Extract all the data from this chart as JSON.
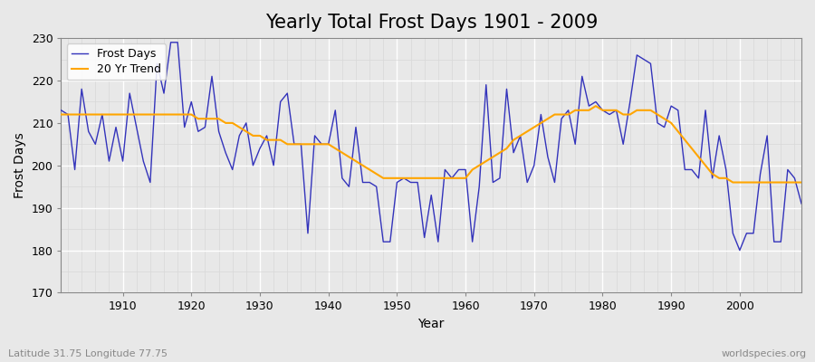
{
  "title": "Yearly Total Frost Days 1901 - 2009",
  "xlabel": "Year",
  "ylabel": "Frost Days",
  "lat_lon_label": "Latitude 31.75 Longitude 77.75",
  "watermark": "worldspecies.org",
  "ylim": [
    170,
    230
  ],
  "xlim": [
    1901,
    2009
  ],
  "years": [
    1901,
    1902,
    1903,
    1904,
    1905,
    1906,
    1907,
    1908,
    1909,
    1910,
    1911,
    1912,
    1913,
    1914,
    1915,
    1916,
    1917,
    1918,
    1919,
    1920,
    1921,
    1922,
    1923,
    1924,
    1925,
    1926,
    1927,
    1928,
    1929,
    1930,
    1931,
    1932,
    1933,
    1934,
    1935,
    1936,
    1937,
    1938,
    1939,
    1940,
    1941,
    1942,
    1943,
    1944,
    1945,
    1946,
    1947,
    1948,
    1949,
    1950,
    1951,
    1952,
    1953,
    1954,
    1955,
    1956,
    1957,
    1958,
    1959,
    1960,
    1961,
    1962,
    1963,
    1964,
    1965,
    1966,
    1967,
    1968,
    1969,
    1970,
    1971,
    1972,
    1973,
    1974,
    1975,
    1976,
    1977,
    1978,
    1979,
    1980,
    1981,
    1982,
    1983,
    1984,
    1985,
    1986,
    1987,
    1988,
    1989,
    1990,
    1991,
    1992,
    1993,
    1994,
    1995,
    1996,
    1997,
    1998,
    1999,
    2000,
    2001,
    2002,
    2003,
    2004,
    2005,
    2006,
    2007,
    2008,
    2009
  ],
  "frost_days": [
    213,
    212,
    199,
    218,
    208,
    205,
    212,
    201,
    209,
    201,
    217,
    209,
    201,
    196,
    224,
    217,
    229,
    229,
    209,
    215,
    208,
    209,
    221,
    208,
    203,
    199,
    207,
    210,
    200,
    204,
    207,
    200,
    215,
    217,
    205,
    205,
    184,
    207,
    205,
    205,
    213,
    197,
    195,
    209,
    196,
    196,
    195,
    182,
    182,
    196,
    197,
    196,
    196,
    183,
    193,
    182,
    199,
    197,
    199,
    199,
    182,
    195,
    219,
    196,
    197,
    218,
    203,
    207,
    196,
    200,
    212,
    202,
    196,
    211,
    213,
    205,
    221,
    214,
    215,
    213,
    212,
    213,
    205,
    215,
    226,
    225,
    224,
    210,
    209,
    214,
    213,
    199,
    199,
    197,
    213,
    197,
    207,
    199,
    184,
    180,
    184,
    184,
    198,
    207,
    182,
    182,
    199,
    197,
    191
  ],
  "trend_years": [
    1901,
    1902,
    1903,
    1904,
    1905,
    1906,
    1907,
    1908,
    1909,
    1910,
    1911,
    1912,
    1913,
    1914,
    1915,
    1916,
    1917,
    1918,
    1919,
    1920,
    1921,
    1922,
    1923,
    1924,
    1925,
    1926,
    1927,
    1928,
    1929,
    1930,
    1931,
    1932,
    1933,
    1934,
    1935,
    1936,
    1937,
    1938,
    1939,
    1940,
    1941,
    1942,
    1943,
    1944,
    1945,
    1946,
    1947,
    1948,
    1949,
    1950,
    1951,
    1952,
    1953,
    1954,
    1955,
    1956,
    1957,
    1958,
    1959,
    1960,
    1961,
    1962,
    1963,
    1964,
    1965,
    1966,
    1967,
    1968,
    1969,
    1970,
    1971,
    1972,
    1973,
    1974,
    1975,
    1976,
    1977,
    1978,
    1979,
    1980,
    1981,
    1982,
    1983,
    1984,
    1985,
    1986,
    1987,
    1988,
    1989,
    1990,
    1991,
    1992,
    1993,
    1994,
    1995,
    1996,
    1997,
    1998,
    1999,
    2000,
    2001,
    2002,
    2003,
    2004,
    2005,
    2006,
    2007,
    2008,
    2009
  ],
  "trend_values": [
    212,
    212,
    212,
    212,
    212,
    212,
    212,
    212,
    212,
    212,
    212,
    212,
    212,
    212,
    212,
    212,
    212,
    212,
    212,
    212,
    211,
    211,
    211,
    211,
    210,
    210,
    209,
    208,
    207,
    207,
    206,
    206,
    206,
    205,
    205,
    205,
    205,
    205,
    205,
    205,
    204,
    203,
    202,
    201,
    200,
    199,
    198,
    197,
    197,
    197,
    197,
    197,
    197,
    197,
    197,
    197,
    197,
    197,
    197,
    197,
    199,
    200,
    201,
    202,
    203,
    204,
    206,
    207,
    208,
    209,
    210,
    211,
    212,
    212,
    212,
    213,
    213,
    213,
    214,
    213,
    213,
    213,
    212,
    212,
    213,
    213,
    213,
    212,
    211,
    210,
    208,
    206,
    204,
    202,
    200,
    198,
    197,
    197,
    196,
    196,
    196,
    196,
    196,
    196,
    196,
    196,
    196,
    196,
    196
  ],
  "frost_color": "#3333bb",
  "trend_color": "#FFA500",
  "bg_color": "#e8e8e8",
  "plot_bg_color": "#e8e8e8",
  "grid_major_color": "#ffffff",
  "grid_minor_color": "#d8d8d8",
  "title_fontsize": 15,
  "label_fontsize": 10,
  "tick_fontsize": 9,
  "legend_fontsize": 9
}
